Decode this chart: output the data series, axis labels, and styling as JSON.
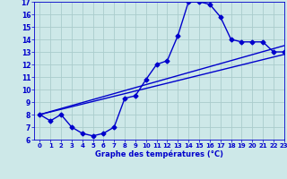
{
  "xlabel": "Graphe des températures (°C)",
  "background_color": "#cde8e8",
  "line_color": "#0000cc",
  "grid_color": "#aacccc",
  "xlim": [
    -0.5,
    23
  ],
  "ylim": [
    6,
    17
  ],
  "xticks": [
    0,
    1,
    2,
    3,
    4,
    5,
    6,
    7,
    8,
    9,
    10,
    11,
    12,
    13,
    14,
    15,
    16,
    17,
    18,
    19,
    20,
    21,
    22,
    23
  ],
  "yticks": [
    6,
    7,
    8,
    9,
    10,
    11,
    12,
    13,
    14,
    15,
    16,
    17
  ],
  "curve1_x": [
    0,
    1,
    2,
    3,
    4,
    5,
    6,
    7,
    8,
    9,
    10,
    11,
    12,
    13,
    14,
    15,
    16,
    17,
    18,
    19,
    20,
    21,
    22,
    23
  ],
  "curve1_y": [
    8.0,
    7.5,
    8.0,
    7.0,
    6.5,
    6.3,
    6.5,
    7.0,
    9.3,
    9.5,
    10.8,
    12.0,
    12.3,
    14.3,
    17.0,
    17.0,
    16.8,
    15.8,
    14.0,
    13.8,
    13.8,
    13.8,
    13.0,
    13.0
  ],
  "curve2_x": [
    0,
    23
  ],
  "curve2_y": [
    8.0,
    13.5
  ],
  "curve3_x": [
    0,
    23
  ],
  "curve3_y": [
    8.0,
    12.8
  ],
  "marker": "D",
  "markersize": 2.5,
  "linewidth": 1.0
}
